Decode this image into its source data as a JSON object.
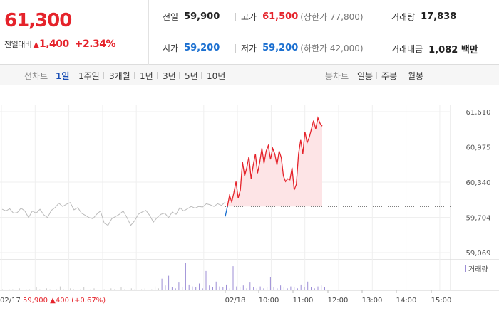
{
  "summary": {
    "price": "61,300",
    "change_label": "전일대비",
    "change_arrow": "▲",
    "change_value": "1,400",
    "change_pct": "+2.34%"
  },
  "stats": {
    "prev_close": {
      "label": "전일",
      "value": "59,900"
    },
    "high": {
      "label": "고가",
      "value": "61,500",
      "extra": "(상한가 77,800)"
    },
    "volume": {
      "label": "거래량",
      "value": "17,838"
    },
    "open": {
      "label": "시가",
      "value": "59,200"
    },
    "low": {
      "label": "저가",
      "value": "59,200",
      "extra": "(하한가 42,000)"
    },
    "amount": {
      "label": "거래대금",
      "value": "1,082 백만"
    }
  },
  "tabs": {
    "line_label": "선차트",
    "line": [
      "1일",
      "1주일",
      "3개월",
      "1년",
      "3년",
      "5년",
      "10년"
    ],
    "active": "1일",
    "candle_label": "봉차트",
    "candle": [
      "일봉",
      "주봉",
      "월봉"
    ]
  },
  "colors": {
    "up": "#e5232b",
    "down": "#1a6fd0",
    "accent": "#1a4fb5",
    "prev_day": "#bbbbbb",
    "volume": "#9c8ed6"
  },
  "chart_data": {
    "type": "line",
    "y_ticks": [
      "61,610",
      "60,975",
      "60,340",
      "59,704",
      "59,069"
    ],
    "ylim": [
      59069,
      61610
    ],
    "reference_price": 59900,
    "x_ticks": [
      "02/18",
      "10:00",
      "11:00",
      "12:00",
      "13:00",
      "14:00",
      "15:00"
    ],
    "volume_label": "거래량",
    "prev_day": {
      "date": "02/17",
      "close": "59,900",
      "change_arrow": "▲",
      "change": "400",
      "change_pct": "(+0.67%)"
    },
    "series": [
      {
        "values": [
          59850,
          59820,
          59860,
          59780,
          59790,
          59870,
          59820,
          59700,
          59820,
          59780,
          59850,
          59750,
          59700,
          59830,
          59880,
          59960,
          59900,
          59940,
          59970,
          59840,
          59880,
          59780,
          59740,
          59700,
          59680,
          59760,
          59820,
          59600,
          59560,
          59680,
          59720,
          59760,
          59820,
          59700,
          59560,
          59640,
          59760,
          59800,
          59830,
          59740,
          59620,
          59700,
          59760,
          59780,
          59700,
          59800,
          59760,
          59880,
          59820,
          59860,
          59900,
          59870,
          59900,
          59890,
          59950,
          59930,
          59900,
          59950,
          59920,
          59980
        ]
      },
      {
        "values": [
          59720,
          59900,
          60100,
          59980,
          60150,
          60350,
          60050,
          60200,
          60700,
          60450,
          60600,
          60800,
          60400,
          60650,
          60850,
          60500,
          60700,
          60950,
          60680,
          60900,
          61000,
          60750,
          60950,
          60850,
          60650,
          60900,
          60780,
          60450,
          60350,
          60400,
          60380,
          60600,
          60200,
          60300,
          60850,
          61100,
          60850,
          61250,
          61050,
          61150,
          61300,
          61450,
          61300,
          61500,
          61400,
          61350
        ]
      }
    ],
    "volumes": [
      1,
      0,
      1,
      1,
      0,
      2,
      0,
      1,
      1,
      0,
      3,
      1,
      0,
      2,
      1,
      0,
      1,
      4,
      1,
      0,
      2,
      1,
      0,
      1,
      3,
      0,
      1,
      2,
      0,
      1,
      1,
      0,
      2,
      1,
      0,
      3,
      1,
      0,
      2,
      1,
      0,
      1,
      2,
      0,
      1,
      4,
      2,
      12,
      5,
      15,
      3,
      2,
      8,
      3,
      28,
      6,
      4,
      3,
      7,
      2,
      20,
      5,
      3,
      9,
      4,
      3,
      6,
      2,
      25,
      4,
      3,
      5,
      2,
      8,
      3,
      2,
      4,
      2,
      3,
      14,
      3,
      2,
      5,
      3,
      2,
      4,
      3,
      2,
      6,
      3,
      9,
      3,
      2,
      4,
      5,
      3
    ]
  }
}
